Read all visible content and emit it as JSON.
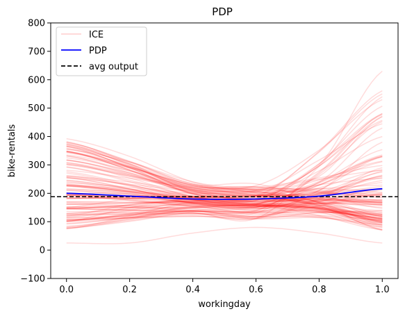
{
  "chart_data": {
    "type": "line",
    "title": "PDP",
    "xlabel": "workingday",
    "ylabel": "bike-rentals",
    "xlim": [
      -0.05,
      1.05
    ],
    "ylim": [
      -100,
      800
    ],
    "xticks": [
      0.0,
      0.2,
      0.4,
      0.6,
      0.8,
      1.0
    ],
    "xtick_labels": [
      "0.0",
      "0.2",
      "0.4",
      "0.6",
      "0.8",
      "1.0"
    ],
    "yticks": [
      -100,
      0,
      100,
      200,
      300,
      400,
      500,
      600,
      700,
      800
    ],
    "ytick_labels": [
      "−100",
      "0",
      "100",
      "200",
      "300",
      "400",
      "500",
      "600",
      "700",
      "800"
    ],
    "grid": false,
    "legend_position": "top-left",
    "legend": [
      {
        "label": "ICE",
        "color": "#ff0000",
        "style": "solid",
        "alpha": 0.15
      },
      {
        "label": "PDP",
        "color": "#0000ff",
        "style": "solid"
      },
      {
        "label": "avg output",
        "color": "#000000",
        "style": "dashed"
      }
    ],
    "x": [
      0.0,
      0.2,
      0.4,
      0.6,
      0.8,
      1.0
    ],
    "pdp": {
      "name": "PDP",
      "values": [
        200,
        190,
        180,
        180,
        190,
        216
      ]
    },
    "avg_output": {
      "name": "avg output",
      "value": 188
    },
    "ice_count": 120,
    "ice_range_at_0": [
      25,
      392
    ],
    "ice_range_at_1": [
      25,
      630
    ],
    "ice_sample_curves": [
      [
        392,
        330,
        240,
        200,
        150,
        100
      ],
      [
        355,
        310,
        240,
        210,
        160,
        120
      ],
      [
        300,
        260,
        220,
        200,
        230,
        330
      ],
      [
        260,
        240,
        210,
        210,
        260,
        470
      ],
      [
        230,
        215,
        200,
        210,
        300,
        630
      ],
      [
        200,
        200,
        190,
        190,
        240,
        430
      ],
      [
        180,
        190,
        185,
        190,
        200,
        260
      ],
      [
        150,
        180,
        190,
        180,
        180,
        160
      ],
      [
        120,
        160,
        180,
        180,
        190,
        290
      ],
      [
        100,
        150,
        180,
        170,
        170,
        120
      ],
      [
        75,
        120,
        170,
        180,
        210,
        380
      ],
      [
        25,
        25,
        60,
        80,
        60,
        25
      ]
    ],
    "colors": {
      "ice": "#ff0000",
      "pdp": "#0000ff",
      "avg": "#000000"
    }
  }
}
